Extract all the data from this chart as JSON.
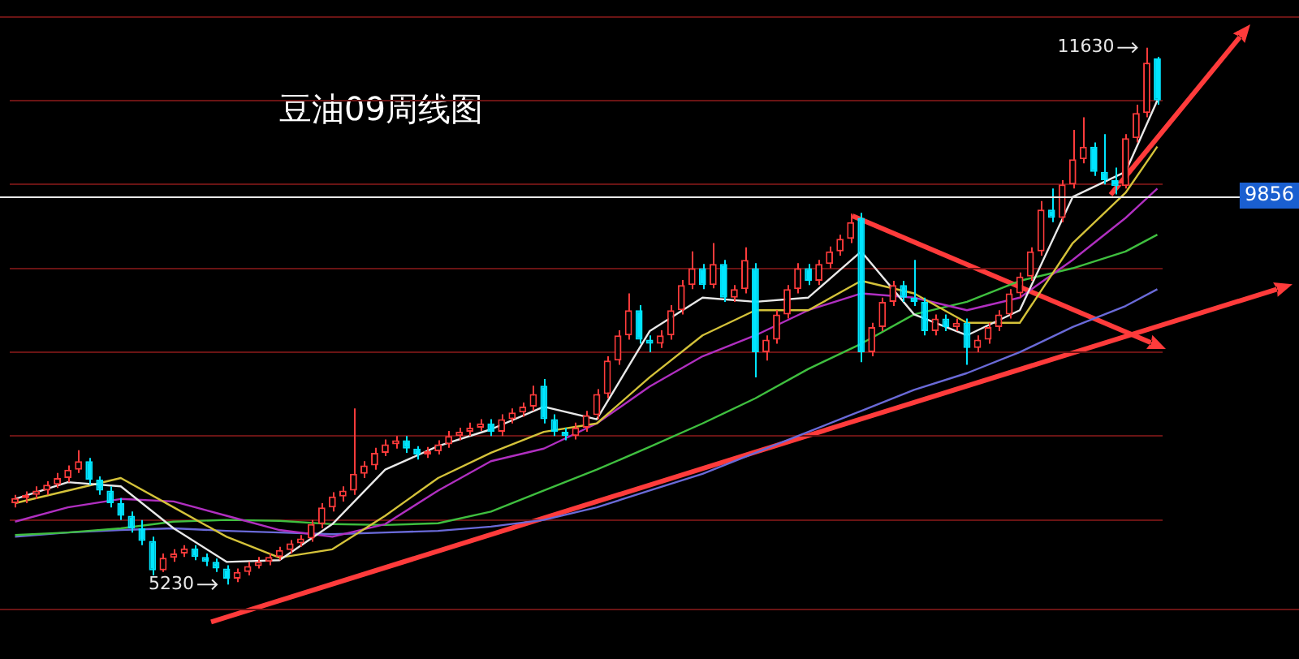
{
  "chart_data": {
    "type": "candlestick",
    "title": "豆油09周线图",
    "categories": [
      null,
      null,
      null,
      null,
      null,
      null,
      null,
      null,
      null,
      null,
      null,
      null,
      null,
      null,
      null,
      null,
      null,
      null,
      null,
      null,
      null,
      null,
      null,
      null,
      null,
      null,
      null,
      null,
      null,
      null,
      null,
      null,
      null,
      null,
      null,
      null,
      null,
      null,
      null,
      null,
      null,
      null,
      null,
      null,
      null,
      null,
      null,
      null,
      null,
      null,
      null,
      null,
      null,
      null,
      null,
      null,
      null,
      null,
      null,
      null,
      null,
      null,
      null,
      null,
      null,
      null,
      null,
      null,
      null,
      null,
      null,
      null,
      null,
      null,
      null,
      null,
      null,
      null,
      null,
      null,
      null,
      null,
      null,
      null,
      null,
      null,
      null,
      null,
      null,
      null,
      null,
      null,
      null,
      null,
      null,
      null,
      null,
      null,
      null,
      null,
      null,
      null,
      null,
      null,
      null,
      null,
      null,
      null,
      null
    ],
    "ohlc": [
      [
        6200,
        6300,
        6150,
        6260
      ],
      [
        6260,
        6340,
        6200,
        6300
      ],
      [
        6300,
        6400,
        6250,
        6350
      ],
      [
        6350,
        6460,
        6300,
        6420
      ],
      [
        6420,
        6560,
        6380,
        6500
      ],
      [
        6500,
        6650,
        6450,
        6600
      ],
      [
        6600,
        6830,
        6560,
        6700
      ],
      [
        6700,
        6740,
        6420,
        6480
      ],
      [
        6480,
        6520,
        6300,
        6350
      ],
      [
        6350,
        6400,
        6150,
        6200
      ],
      [
        6200,
        6260,
        6000,
        6050
      ],
      [
        6050,
        6100,
        5850,
        5900
      ],
      [
        5900,
        6000,
        5700,
        5750
      ],
      [
        5750,
        5800,
        5340,
        5400
      ],
      [
        5400,
        5600,
        5380,
        5550
      ],
      [
        5550,
        5650,
        5500,
        5600
      ],
      [
        5600,
        5700,
        5560,
        5660
      ],
      [
        5660,
        5700,
        5520,
        5560
      ],
      [
        5560,
        5600,
        5450,
        5500
      ],
      [
        5500,
        5540,
        5380,
        5420
      ],
      [
        5420,
        5460,
        5230,
        5300
      ],
      [
        5300,
        5420,
        5260,
        5380
      ],
      [
        5380,
        5500,
        5340,
        5450
      ],
      [
        5450,
        5560,
        5420,
        5500
      ],
      [
        5500,
        5600,
        5460,
        5560
      ],
      [
        5560,
        5680,
        5520,
        5640
      ],
      [
        5640,
        5760,
        5600,
        5720
      ],
      [
        5720,
        5820,
        5680,
        5780
      ],
      [
        5780,
        6000,
        5740,
        5950
      ],
      [
        5950,
        6200,
        5900,
        6150
      ],
      [
        6150,
        6330,
        6100,
        6280
      ],
      [
        6280,
        6400,
        6220,
        6350
      ],
      [
        6350,
        7330,
        6300,
        6550
      ],
      [
        6550,
        6700,
        6500,
        6650
      ],
      [
        6650,
        6860,
        6600,
        6800
      ],
      [
        6800,
        6960,
        6760,
        6900
      ],
      [
        6900,
        7000,
        6850,
        6950
      ],
      [
        6950,
        7000,
        6800,
        6850
      ],
      [
        6850,
        6880,
        6720,
        6780
      ],
      [
        6780,
        6870,
        6740,
        6820
      ],
      [
        6820,
        6950,
        6780,
        6900
      ],
      [
        6900,
        7060,
        6860,
        7000
      ],
      [
        7000,
        7100,
        6950,
        7050
      ],
      [
        7050,
        7160,
        7000,
        7100
      ],
      [
        7100,
        7200,
        7060,
        7150
      ],
      [
        7150,
        7200,
        7000,
        7050
      ],
      [
        7050,
        7260,
        7000,
        7200
      ],
      [
        7200,
        7330,
        7150,
        7280
      ],
      [
        7280,
        7400,
        7230,
        7350
      ],
      [
        7350,
        7600,
        7300,
        7500
      ],
      [
        7600,
        7680,
        7150,
        7200
      ],
      [
        7200,
        7260,
        7000,
        7050
      ],
      [
        7050,
        7100,
        6950,
        7000
      ],
      [
        7000,
        7160,
        6960,
        7100
      ],
      [
        7100,
        7300,
        7050,
        7250
      ],
      [
        7250,
        7560,
        7200,
        7500
      ],
      [
        7500,
        7950,
        7450,
        7900
      ],
      [
        7900,
        8260,
        7850,
        8200
      ],
      [
        8200,
        8700,
        8150,
        8500
      ],
      [
        8500,
        8560,
        8100,
        8150
      ],
      [
        8150,
        8200,
        8000,
        8100
      ],
      [
        8100,
        8260,
        8050,
        8200
      ],
      [
        8200,
        8560,
        8150,
        8500
      ],
      [
        8500,
        8860,
        8450,
        8800
      ],
      [
        8800,
        9200,
        8750,
        9000
      ],
      [
        9000,
        9050,
        8750,
        8800
      ],
      [
        8800,
        9300,
        8760,
        9050
      ],
      [
        9050,
        9100,
        8600,
        8650
      ],
      [
        8650,
        8800,
        8600,
        8750
      ],
      [
        8750,
        9250,
        8700,
        9100
      ],
      [
        9000,
        9060,
        7700,
        8000
      ],
      [
        8000,
        8200,
        7900,
        8150
      ],
      [
        8150,
        8500,
        8100,
        8450
      ],
      [
        8450,
        8800,
        8400,
        8750
      ],
      [
        8750,
        9060,
        8700,
        9000
      ],
      [
        9000,
        9050,
        8800,
        8850
      ],
      [
        8850,
        9100,
        8800,
        9050
      ],
      [
        9050,
        9260,
        9000,
        9200
      ],
      [
        9200,
        9400,
        9150,
        9350
      ],
      [
        9350,
        9650,
        9300,
        9550
      ],
      [
        9600,
        9660,
        7880,
        8000
      ],
      [
        8000,
        8350,
        7950,
        8300
      ],
      [
        8300,
        8650,
        8250,
        8600
      ],
      [
        8600,
        8850,
        8550,
        8800
      ],
      [
        8800,
        8850,
        8600,
        8650
      ],
      [
        8650,
        9100,
        8550,
        8600
      ],
      [
        8600,
        8650,
        8200,
        8250
      ],
      [
        8250,
        8450,
        8200,
        8400
      ],
      [
        8400,
        8450,
        8250,
        8300
      ],
      [
        8300,
        8400,
        8250,
        8350
      ],
      [
        8350,
        8400,
        7850,
        8050
      ],
      [
        8050,
        8200,
        8000,
        8150
      ],
      [
        8150,
        8350,
        8100,
        8300
      ],
      [
        8300,
        8500,
        8250,
        8450
      ],
      [
        8450,
        8750,
        8400,
        8700
      ],
      [
        8700,
        8950,
        8650,
        8900
      ],
      [
        8900,
        9250,
        8850,
        9200
      ],
      [
        9200,
        9800,
        9150,
        9700
      ],
      [
        9700,
        9950,
        9550,
        9600
      ],
      [
        9600,
        10050,
        9550,
        10000
      ],
      [
        10000,
        10650,
        9950,
        10300
      ],
      [
        10300,
        10800,
        10250,
        10450
      ],
      [
        10450,
        10500,
        10100,
        10150
      ],
      [
        10150,
        10600,
        10000,
        10050
      ],
      [
        10050,
        10200,
        9880,
        9980
      ],
      [
        9980,
        10600,
        9950,
        10550
      ],
      [
        10550,
        10950,
        10500,
        10850
      ],
      [
        10850,
        11630,
        10800,
        11450
      ],
      [
        11500,
        11520,
        10950,
        11000
      ]
    ],
    "colors": [
      "#ff3b3b",
      "#ff3b3b",
      "#ff3b3b",
      "#ff3b3b",
      "#ff3b3b",
      "#ff3b3b",
      "#ff3b3b",
      "#00e5ff",
      "#00e5ff",
      "#00e5ff",
      "#00e5ff",
      "#00e5ff",
      "#00e5ff",
      "#00e5ff",
      "#ff3b3b",
      "#ff3b3b",
      "#ff3b3b",
      "#00e5ff",
      "#00e5ff",
      "#00e5ff",
      "#00e5ff",
      "#ff3b3b",
      "#ff3b3b",
      "#ff3b3b",
      "#ff3b3b",
      "#ff3b3b",
      "#ff3b3b",
      "#ff3b3b",
      "#ff3b3b",
      "#ff3b3b",
      "#ff3b3b",
      "#ff3b3b",
      "#ff3b3b",
      "#ff3b3b",
      "#ff3b3b",
      "#ff3b3b",
      "#ff3b3b",
      "#00e5ff",
      "#00e5ff",
      "#ff3b3b",
      "#ff3b3b",
      "#ff3b3b",
      "#ff3b3b",
      "#ff3b3b",
      "#ff3b3b",
      "#00e5ff",
      "#ff3b3b",
      "#ff3b3b",
      "#ff3b3b",
      "#ff3b3b",
      "#00e5ff",
      "#00e5ff",
      "#00e5ff",
      "#ff3b3b",
      "#ff3b3b",
      "#ff3b3b",
      "#ff3b3b",
      "#ff3b3b",
      "#ff3b3b",
      "#00e5ff",
      "#00e5ff",
      "#ff3b3b",
      "#ff3b3b",
      "#ff3b3b",
      "#ff3b3b",
      "#00e5ff",
      "#ff3b3b",
      "#00e5ff",
      "#ff3b3b",
      "#ff3b3b",
      "#00e5ff",
      "#ff3b3b",
      "#ff3b3b",
      "#ff3b3b",
      "#ff3b3b",
      "#00e5ff",
      "#ff3b3b",
      "#ff3b3b",
      "#ff3b3b",
      "#ff3b3b",
      "#00e5ff",
      "#ff3b3b",
      "#ff3b3b",
      "#ff3b3b",
      "#00e5ff",
      "#00e5ff",
      "#00e5ff",
      "#ff3b3b",
      "#00e5ff",
      "#ff3b3b",
      "#00e5ff",
      "#ff3b3b",
      "#ff3b3b",
      "#ff3b3b",
      "#ff3b3b",
      "#ff3b3b",
      "#ff3b3b",
      "#ff3b3b",
      "#00e5ff",
      "#ff3b3b",
      "#ff3b3b",
      "#ff3b3b",
      "#00e5ff",
      "#00e5ff",
      "#00e5ff",
      "#ff3b3b",
      "#ff3b3b",
      "#ff3b3b",
      "#00e5ff"
    ],
    "series": [
      {
        "type": "line",
        "color": "#e8e8e8",
        "values": [
          6250,
          null,
          null,
          null,
          null,
          6450,
          null,
          null,
          null,
          null,
          6400,
          null,
          null,
          null,
          null,
          5900,
          null,
          null,
          null,
          null,
          5500,
          null,
          null,
          null,
          null,
          5520,
          null,
          null,
          null,
          null,
          5950,
          null,
          null,
          null,
          null,
          6600,
          null,
          null,
          null,
          null,
          6880,
          null,
          null,
          null,
          null,
          7080,
          null,
          null,
          null,
          null,
          7350,
          null,
          null,
          null,
          null,
          7200,
          null,
          null,
          null,
          null,
          8250,
          null,
          null,
          null,
          null,
          8650,
          null,
          null,
          null,
          null,
          8600,
          null,
          null,
          null,
          null,
          8650,
          null,
          null,
          null,
          null,
          9200,
          null,
          null,
          null,
          null,
          8450,
          null,
          null,
          null,
          null,
          8200,
          null,
          null,
          null,
          null,
          8500,
          null,
          null,
          null,
          null,
          9850,
          null,
          null,
          null,
          null,
          10150,
          null,
          null,
          11000
        ]
      },
      {
        "type": "line",
        "color": "#d4c23a",
        "values": [
          6200,
          null,
          null,
          null,
          null,
          6350,
          null,
          null,
          null,
          null,
          6500,
          null,
          null,
          null,
          null,
          6150,
          null,
          null,
          null,
          null,
          5800,
          null,
          null,
          null,
          null,
          5550,
          null,
          null,
          null,
          null,
          5650,
          null,
          null,
          null,
          null,
          6050,
          null,
          null,
          null,
          null,
          6500,
          null,
          null,
          null,
          null,
          6800,
          null,
          null,
          null,
          null,
          7050,
          null,
          null,
          null,
          null,
          7150,
          null,
          null,
          null,
          null,
          7700,
          null,
          null,
          null,
          null,
          8200,
          null,
          null,
          null,
          null,
          8500,
          null,
          null,
          null,
          null,
          8500,
          null,
          null,
          null,
          null,
          8850,
          null,
          null,
          null,
          null,
          8700,
          null,
          null,
          null,
          null,
          8350,
          null,
          null,
          null,
          null,
          8350,
          null,
          null,
          null,
          null,
          9300,
          null,
          null,
          null,
          null,
          9900,
          null,
          null,
          10450
        ]
      },
      {
        "type": "line",
        "color": "#b02fc0",
        "values": [
          5980,
          null,
          null,
          null,
          null,
          6150,
          null,
          null,
          null,
          null,
          6250,
          null,
          null,
          null,
          null,
          6220,
          null,
          null,
          null,
          null,
          6050,
          null,
          null,
          null,
          null,
          5880,
          null,
          null,
          null,
          null,
          5800,
          null,
          null,
          null,
          null,
          5950,
          null,
          null,
          null,
          null,
          6350,
          null,
          null,
          null,
          null,
          6700,
          null,
          null,
          null,
          null,
          6850,
          null,
          null,
          null,
          null,
          7150,
          null,
          null,
          null,
          null,
          7590,
          null,
          null,
          null,
          null,
          7950,
          null,
          null,
          null,
          null,
          8200,
          null,
          null,
          null,
          null,
          8500,
          null,
          null,
          null,
          null,
          8700,
          null,
          null,
          null,
          null,
          8650,
          null,
          null,
          null,
          null,
          8500,
          null,
          null,
          null,
          null,
          8650,
          null,
          null,
          null,
          null,
          9100,
          null,
          null,
          null,
          null,
          9600,
          null,
          null,
          9950
        ]
      },
      {
        "type": "line",
        "color": "#3fbf3f",
        "values": [
          5820,
          null,
          null,
          null,
          null,
          5850,
          null,
          null,
          null,
          null,
          5900,
          null,
          null,
          null,
          null,
          5980,
          null,
          null,
          null,
          null,
          6000,
          null,
          null,
          null,
          null,
          5990,
          null,
          null,
          null,
          null,
          5950,
          null,
          null,
          null,
          null,
          5940,
          null,
          null,
          null,
          null,
          5960,
          null,
          null,
          null,
          null,
          6100,
          null,
          null,
          null,
          null,
          6350,
          null,
          null,
          null,
          null,
          6600,
          null,
          null,
          null,
          null,
          6870,
          null,
          null,
          null,
          null,
          7150,
          null,
          null,
          null,
          null,
          7450,
          null,
          null,
          null,
          null,
          7800,
          null,
          null,
          null,
          null,
          8100,
          null,
          null,
          null,
          null,
          8450,
          null,
          null,
          null,
          null,
          8600,
          null,
          null,
          null,
          null,
          8850,
          null,
          null,
          null,
          null,
          9000,
          null,
          null,
          null,
          null,
          9200,
          null,
          null,
          9400
        ]
      },
      {
        "type": "line",
        "color": "#6a6ad8",
        "values": [
          5800,
          null,
          null,
          null,
          null,
          5850,
          null,
          null,
          null,
          null,
          5880,
          null,
          null,
          null,
          null,
          5900,
          null,
          null,
          null,
          null,
          5870,
          null,
          null,
          null,
          null,
          5850,
          null,
          null,
          null,
          null,
          5830,
          null,
          null,
          null,
          null,
          5850,
          null,
          null,
          null,
          null,
          5870,
          null,
          null,
          null,
          null,
          5920,
          null,
          null,
          null,
          null,
          6000,
          null,
          null,
          null,
          null,
          6150,
          null,
          null,
          null,
          null,
          6350,
          null,
          null,
          null,
          null,
          6550,
          null,
          null,
          null,
          null,
          6800,
          null,
          null,
          null,
          null,
          7050,
          null,
          null,
          null,
          null,
          7300,
          null,
          null,
          null,
          null,
          7550,
          null,
          null,
          null,
          null,
          7750,
          null,
          null,
          null,
          null,
          8000,
          null,
          null,
          null,
          null,
          8300,
          null,
          null,
          null,
          null,
          8550,
          null,
          null,
          8750
        ]
      }
    ],
    "ylim": [
      4950,
      12000
    ],
    "yticks": [
      {
        "value": 6000,
        "label": null
      },
      {
        "value": 7000,
        "label": null
      },
      {
        "value": 8000,
        "label": null
      },
      {
        "value": 9000,
        "label": null
      },
      {
        "value": 10000,
        "label": null
      },
      {
        "value": 11000,
        "label": null
      }
    ],
    "grid": "y",
    "legend": false,
    "ref_lines": [
      {
        "axis": "y",
        "value": 9856,
        "label": "9856",
        "color": "#e8e8e8"
      }
    ],
    "annotations": [
      "11630",
      "5230"
    ]
  }
}
